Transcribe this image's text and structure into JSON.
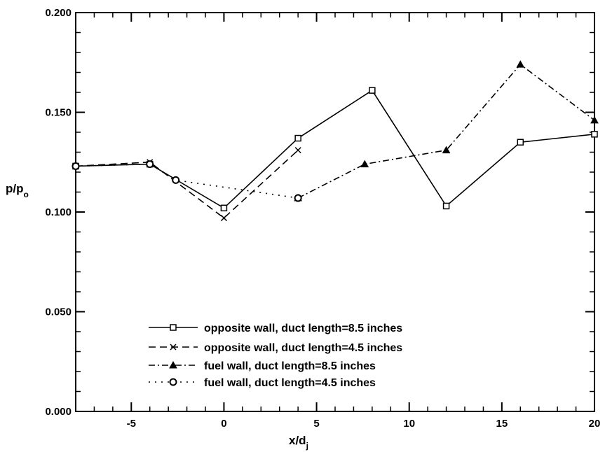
{
  "chart_data": {
    "type": "line",
    "title": "",
    "xlabel": {
      "main": "x/d",
      "sub": "j"
    },
    "ylabel": {
      "main": "p/p",
      "sub": "o"
    },
    "xlim": [
      -8,
      20
    ],
    "ylim": [
      0.0,
      0.2
    ],
    "xticks": [
      -5,
      0,
      5,
      10,
      15,
      20
    ],
    "xtick_labels": [
      "-5",
      "0",
      "5",
      "10",
      "15",
      "20"
    ],
    "yticks": [
      0.0,
      0.05,
      0.1,
      0.15,
      0.2
    ],
    "ytick_labels": [
      "0.000",
      "0.050",
      "0.100",
      "0.150",
      "0.200"
    ],
    "grid": false,
    "legend_position": "bottom-center",
    "series": [
      {
        "name": "opposite wall, duct length=8.5 inches",
        "line_style": "solid",
        "marker": "open-square",
        "x": [
          -8,
          -4,
          0,
          4,
          8,
          12,
          16,
          20
        ],
        "y": [
          0.123,
          0.124,
          0.102,
          0.137,
          0.161,
          0.103,
          0.135,
          0.139
        ]
      },
      {
        "name": "opposite wall, duct length=4.5 inches",
        "line_style": "dashed",
        "marker": "x",
        "x": [
          -8,
          -4,
          0,
          4
        ],
        "y": [
          0.123,
          0.125,
          0.097,
          0.131
        ]
      },
      {
        "name": "fuel wall, duct length=8.5 inches",
        "line_style": "dash-dot",
        "marker": "triangle",
        "x": [
          4,
          7.6,
          12,
          16,
          20
        ],
        "y": [
          0.107,
          0.124,
          0.131,
          0.174,
          0.146
        ]
      },
      {
        "name": "fuel wall, duct length=4.5 inches",
        "line_style": "dotted",
        "marker": "open-circle",
        "x": [
          -8,
          -4,
          -2.6,
          4
        ],
        "y": [
          0.123,
          0.124,
          0.116,
          0.107
        ]
      }
    ]
  }
}
